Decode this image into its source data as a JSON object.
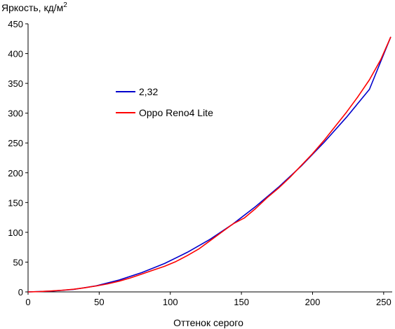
{
  "chart_data": {
    "type": "line",
    "title": "",
    "ylabel": "Яркость, кд/м",
    "ylabel_sup": "2",
    "xlabel": "Оттенок серого",
    "xlim": [
      0,
      256
    ],
    "ylim": [
      0,
      450
    ],
    "xticks": [
      0,
      50,
      100,
      150,
      200,
      250
    ],
    "yticks": [
      0,
      50,
      100,
      150,
      200,
      250,
      300,
      350,
      400,
      450
    ],
    "grid": false,
    "legend_placement": "upper-left-center",
    "series": [
      {
        "name": "2,32",
        "color": "#0000cc",
        "x": [
          0,
          16,
          32,
          48,
          64,
          80,
          96,
          112,
          128,
          144,
          160,
          176,
          192,
          208,
          224,
          240,
          255
        ],
        "y": [
          0,
          1.3,
          4.1,
          10.2,
          19.9,
          32.4,
          47.7,
          66.5,
          88.4,
          113.9,
          143.4,
          175.6,
          211.1,
          250.7,
          293.5,
          340.0,
          428
        ]
      },
      {
        "name": "Oppo Reno4 Lite",
        "color": "#ff0000",
        "x": [
          0,
          8,
          16,
          24,
          32,
          40,
          48,
          56,
          64,
          72,
          80,
          88,
          96,
          104,
          112,
          120,
          128,
          136,
          144,
          152,
          160,
          168,
          176,
          184,
          192,
          200,
          208,
          216,
          224,
          232,
          240,
          248,
          255
        ],
        "y": [
          0,
          0.5,
          1.5,
          2.8,
          4.5,
          7,
          10,
          13.5,
          18,
          23.5,
          30,
          36.5,
          43,
          51,
          61,
          72,
          86,
          100,
          114,
          124,
          140,
          158,
          174,
          192,
          212,
          232,
          254,
          278,
          302,
          328,
          356,
          390,
          428
        ]
      }
    ]
  }
}
